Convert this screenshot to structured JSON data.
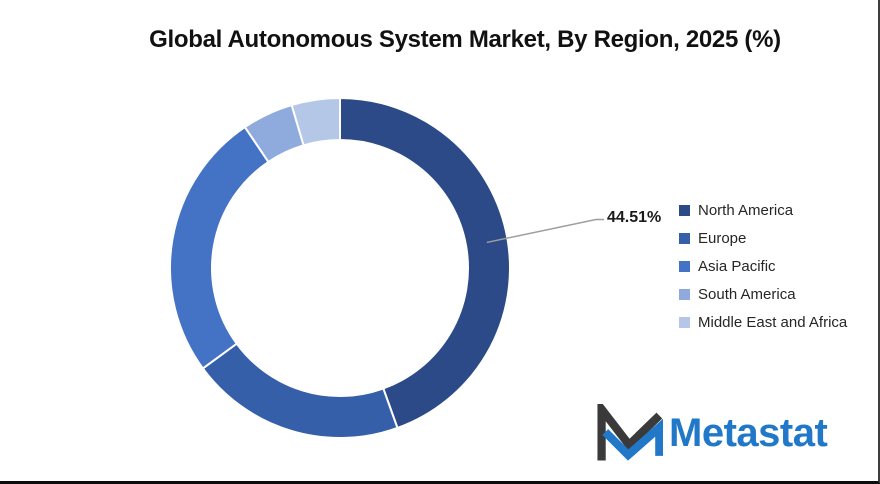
{
  "title": "Global Autonomous System Market, By Region, 2025 (%)",
  "chart_data": {
    "type": "pie",
    "subtype": "donut",
    "title": "Global Autonomous System Market, By Region, 2025 (%)",
    "unit": "%",
    "categories": [
      "North America",
      "Europe",
      "Asia Pacific",
      "South America",
      "Middle East and Africa"
    ],
    "values": [
      44.51,
      20.43,
      25.61,
      4.86,
      4.59
    ],
    "colors": [
      "#2B4A87",
      "#355FA8",
      "#4472C4",
      "#8FAADC",
      "#B4C7E7"
    ],
    "labeled_slice": "North America",
    "data_label": "44.51%",
    "start_angle_deg": 0,
    "direction": "clockwise",
    "hole_ratio": 0.75,
    "legend_position": "right",
    "leader_line_color": "#9e9e9e",
    "slice_gap_color": "#ffffff"
  },
  "brand": {
    "name": "Metastat",
    "blue": "#2178C8",
    "dark": "#3A3A3A"
  }
}
